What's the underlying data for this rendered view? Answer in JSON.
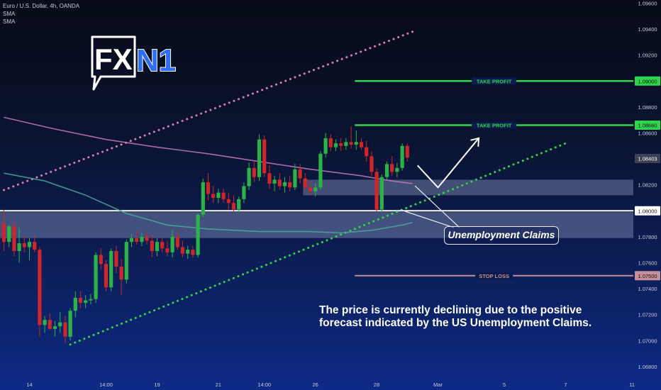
{
  "header": {
    "symbol_line": "Euro / U.S. Dollar, 4h, OANDA",
    "indicators": [
      "SMA",
      "SMA"
    ]
  },
  "logo": {
    "text": "FXN1"
  },
  "annotations": {
    "callout": "Unemployment Claims",
    "note": "The price is currently declining due to the positive forecast indicated by the US Unemployment Claims."
  },
  "colors": {
    "up": "#26a69a",
    "up_candle": "#2bb34a",
    "down": "#d0252b",
    "take_profit": "#2ed64b",
    "stop_loss": "#c78f96",
    "trend_upper": "#d77fb3",
    "trend_lower": "#2ed64b",
    "sma_fast": "#c57bbd",
    "sma_slow": "#4aa89c",
    "zone": "#b7c3ea"
  },
  "chart_data": {
    "type": "candlestick",
    "instrument": "Euro / U.S. Dollar",
    "timeframe": "4h",
    "source": "OANDA",
    "y_axis": {
      "ticks": [
        "1.09600",
        "1.09400",
        "1.09200",
        "1.09000",
        "1.08800",
        "1.08600",
        "1.08400",
        "1.08200",
        "1.08000",
        "1.07800",
        "1.07600",
        "1.07400",
        "1.07200",
        "1.07000",
        "1.06800"
      ],
      "range": [
        1.0676,
        1.0962
      ]
    },
    "x_axis": {
      "ticks": [
        {
          "label": "14",
          "bar": 5
        },
        {
          "label": "14:00",
          "bar": 20
        },
        {
          "label": "19",
          "bar": 30
        },
        {
          "label": "21",
          "bar": 42
        },
        {
          "label": "14:00",
          "bar": 51
        },
        {
          "label": "26",
          "bar": 61
        },
        {
          "label": "28",
          "bar": 73
        },
        {
          "label": "Mar",
          "bar": 85
        },
        {
          "label": "5",
          "bar": 98
        },
        {
          "label": "7",
          "bar": 110
        },
        {
          "label": "11",
          "bar": 123
        }
      ]
    },
    "price_labels": [
      {
        "text": "1.09000",
        "value": 1.09,
        "kind": "take_profit"
      },
      {
        "text": "1.08660",
        "value": 1.0866,
        "kind": "take_profit"
      },
      {
        "text": "1.08403",
        "value": 1.08403,
        "kind": "current"
      },
      {
        "text": "1.08000",
        "value": 1.08,
        "kind": "level"
      },
      {
        "text": "1.07500",
        "value": 1.075,
        "kind": "stop_loss"
      }
    ],
    "levels": [
      {
        "label": "TAKE PROFIT",
        "value": 1.09,
        "type": "take_profit",
        "from_bar": 69
      },
      {
        "label": "TAKE PROFIT",
        "value": 1.0866,
        "type": "take_profit",
        "from_bar": 69
      },
      {
        "label": "STOP LOSS",
        "value": 1.075,
        "type": "stop_loss",
        "from_bar": 69
      },
      {
        "label": "",
        "value": 1.08,
        "type": "horizontal"
      }
    ],
    "zones": [
      {
        "from": 1.0779,
        "to": 1.0799,
        "from_bar": 0,
        "to_bar": null
      },
      {
        "from": 1.0812,
        "to": 1.0824,
        "from_bar": 59,
        "to_bar": null
      }
    ],
    "candles": [
      {
        "o": 1.079,
        "h": 1.0801,
        "l": 1.0769,
        "c": 1.0776
      },
      {
        "o": 1.0776,
        "h": 1.0789,
        "l": 1.0772,
        "c": 1.0788
      },
      {
        "o": 1.0788,
        "h": 1.0792,
        "l": 1.0765,
        "c": 1.0769
      },
      {
        "o": 1.0769,
        "h": 1.0787,
        "l": 1.076,
        "c": 1.0775
      },
      {
        "o": 1.0775,
        "h": 1.0781,
        "l": 1.0768,
        "c": 1.0772
      },
      {
        "o": 1.0772,
        "h": 1.0779,
        "l": 1.0762,
        "c": 1.0776
      },
      {
        "o": 1.0776,
        "h": 1.0781,
        "l": 1.0768,
        "c": 1.077
      },
      {
        "o": 1.077,
        "h": 1.0772,
        "l": 1.0703,
        "c": 1.0712
      },
      {
        "o": 1.0712,
        "h": 1.0719,
        "l": 1.0706,
        "c": 1.0716
      },
      {
        "o": 1.0716,
        "h": 1.0721,
        "l": 1.0708,
        "c": 1.0709
      },
      {
        "o": 1.0709,
        "h": 1.0715,
        "l": 1.0703,
        "c": 1.0711
      },
      {
        "o": 1.0711,
        "h": 1.0722,
        "l": 1.0706,
        "c": 1.0714
      },
      {
        "o": 1.0714,
        "h": 1.0719,
        "l": 1.0698,
        "c": 1.0703
      },
      {
        "o": 1.0703,
        "h": 1.0725,
        "l": 1.07,
        "c": 1.0723
      },
      {
        "o": 1.0723,
        "h": 1.0738,
        "l": 1.0718,
        "c": 1.0733
      },
      {
        "o": 1.0733,
        "h": 1.0738,
        "l": 1.0725,
        "c": 1.0729
      },
      {
        "o": 1.0729,
        "h": 1.0735,
        "l": 1.0725,
        "c": 1.0731
      },
      {
        "o": 1.0731,
        "h": 1.0736,
        "l": 1.0728,
        "c": 1.0732
      },
      {
        "o": 1.0732,
        "h": 1.0768,
        "l": 1.0729,
        "c": 1.0766
      },
      {
        "o": 1.0766,
        "h": 1.0771,
        "l": 1.0755,
        "c": 1.0759
      },
      {
        "o": 1.0759,
        "h": 1.0762,
        "l": 1.0738,
        "c": 1.0741
      },
      {
        "o": 1.0741,
        "h": 1.0771,
        "l": 1.0738,
        "c": 1.0769
      },
      {
        "o": 1.0769,
        "h": 1.0773,
        "l": 1.0752,
        "c": 1.0757
      },
      {
        "o": 1.0757,
        "h": 1.0763,
        "l": 1.0735,
        "c": 1.0747
      },
      {
        "o": 1.0747,
        "h": 1.0778,
        "l": 1.0744,
        "c": 1.0776
      },
      {
        "o": 1.0776,
        "h": 1.0782,
        "l": 1.0772,
        "c": 1.0779
      },
      {
        "o": 1.0779,
        "h": 1.0785,
        "l": 1.0774,
        "c": 1.0776
      },
      {
        "o": 1.0776,
        "h": 1.0783,
        "l": 1.0773,
        "c": 1.078
      },
      {
        "o": 1.078,
        "h": 1.0784,
        "l": 1.0774,
        "c": 1.0777
      },
      {
        "o": 1.0777,
        "h": 1.0782,
        "l": 1.0764,
        "c": 1.0769
      },
      {
        "o": 1.0769,
        "h": 1.0779,
        "l": 1.0765,
        "c": 1.0776
      },
      {
        "o": 1.0776,
        "h": 1.0779,
        "l": 1.0768,
        "c": 1.0771
      },
      {
        "o": 1.0771,
        "h": 1.0777,
        "l": 1.0765,
        "c": 1.0768
      },
      {
        "o": 1.0768,
        "h": 1.0785,
        "l": 1.0764,
        "c": 1.078
      },
      {
        "o": 1.078,
        "h": 1.0784,
        "l": 1.077,
        "c": 1.0772
      },
      {
        "o": 1.0772,
        "h": 1.0777,
        "l": 1.0764,
        "c": 1.0767
      },
      {
        "o": 1.0767,
        "h": 1.0773,
        "l": 1.0763,
        "c": 1.077
      },
      {
        "o": 1.077,
        "h": 1.0773,
        "l": 1.0764,
        "c": 1.0766
      },
      {
        "o": 1.0766,
        "h": 1.0798,
        "l": 1.0764,
        "c": 1.0797
      },
      {
        "o": 1.0797,
        "h": 1.0825,
        "l": 1.0795,
        "c": 1.0822
      },
      {
        "o": 1.0822,
        "h": 1.0829,
        "l": 1.0808,
        "c": 1.0813
      },
      {
        "o": 1.0813,
        "h": 1.0819,
        "l": 1.0806,
        "c": 1.081
      },
      {
        "o": 1.081,
        "h": 1.0817,
        "l": 1.0806,
        "c": 1.0814
      },
      {
        "o": 1.0814,
        "h": 1.0817,
        "l": 1.0806,
        "c": 1.0809
      },
      {
        "o": 1.0809,
        "h": 1.0814,
        "l": 1.0801,
        "c": 1.0806
      },
      {
        "o": 1.0806,
        "h": 1.0812,
        "l": 1.0799,
        "c": 1.0801
      },
      {
        "o": 1.0801,
        "h": 1.0811,
        "l": 1.0799,
        "c": 1.0809
      },
      {
        "o": 1.0809,
        "h": 1.0822,
        "l": 1.0806,
        "c": 1.0819
      },
      {
        "o": 1.0819,
        "h": 1.0837,
        "l": 1.0816,
        "c": 1.0833
      },
      {
        "o": 1.0833,
        "h": 1.0838,
        "l": 1.0822,
        "c": 1.0826
      },
      {
        "o": 1.0826,
        "h": 1.0859,
        "l": 1.0823,
        "c": 1.0855
      },
      {
        "o": 1.0855,
        "h": 1.0858,
        "l": 1.0826,
        "c": 1.0829
      },
      {
        "o": 1.0829,
        "h": 1.0835,
        "l": 1.0817,
        "c": 1.0821
      },
      {
        "o": 1.0821,
        "h": 1.0827,
        "l": 1.0815,
        "c": 1.0824
      },
      {
        "o": 1.0824,
        "h": 1.0829,
        "l": 1.0816,
        "c": 1.0819
      },
      {
        "o": 1.0819,
        "h": 1.0826,
        "l": 1.0814,
        "c": 1.0822
      },
      {
        "o": 1.0822,
        "h": 1.0827,
        "l": 1.0815,
        "c": 1.0818
      },
      {
        "o": 1.0818,
        "h": 1.0836,
        "l": 1.0816,
        "c": 1.0832
      },
      {
        "o": 1.0832,
        "h": 1.0836,
        "l": 1.0821,
        "c": 1.0825
      },
      {
        "o": 1.0825,
        "h": 1.0829,
        "l": 1.0815,
        "c": 1.0818
      },
      {
        "o": 1.0818,
        "h": 1.0822,
        "l": 1.0812,
        "c": 1.0815
      },
      {
        "o": 1.0815,
        "h": 1.0821,
        "l": 1.0811,
        "c": 1.0818
      },
      {
        "o": 1.0818,
        "h": 1.0846,
        "l": 1.0816,
        "c": 1.0844
      },
      {
        "o": 1.0844,
        "h": 1.086,
        "l": 1.0841,
        "c": 1.0856
      },
      {
        "o": 1.0856,
        "h": 1.0859,
        "l": 1.0846,
        "c": 1.0849
      },
      {
        "o": 1.0849,
        "h": 1.0855,
        "l": 1.0846,
        "c": 1.0852
      },
      {
        "o": 1.0852,
        "h": 1.0856,
        "l": 1.0846,
        "c": 1.085
      },
      {
        "o": 1.085,
        "h": 1.0856,
        "l": 1.0847,
        "c": 1.0853
      },
      {
        "o": 1.0853,
        "h": 1.0865,
        "l": 1.0848,
        "c": 1.0851
      },
      {
        "o": 1.0851,
        "h": 1.0862,
        "l": 1.0847,
        "c": 1.0853
      },
      {
        "o": 1.0853,
        "h": 1.0856,
        "l": 1.0847,
        "c": 1.0849
      },
      {
        "o": 1.0849,
        "h": 1.0854,
        "l": 1.0838,
        "c": 1.0842
      },
      {
        "o": 1.0842,
        "h": 1.0846,
        "l": 1.0827,
        "c": 1.083
      },
      {
        "o": 1.083,
        "h": 1.0833,
        "l": 1.0799,
        "c": 1.0801
      },
      {
        "o": 1.0801,
        "h": 1.0828,
        "l": 1.0799,
        "c": 1.0826
      },
      {
        "o": 1.0826,
        "h": 1.0838,
        "l": 1.0824,
        "c": 1.0836
      },
      {
        "o": 1.0836,
        "h": 1.0842,
        "l": 1.0827,
        "c": 1.083
      },
      {
        "o": 1.083,
        "h": 1.0837,
        "l": 1.0826,
        "c": 1.0833
      },
      {
        "o": 1.0833,
        "h": 1.0852,
        "l": 1.0831,
        "c": 1.085
      },
      {
        "o": 1.085,
        "h": 1.0852,
        "l": 1.0838,
        "c": 1.0841
      }
    ],
    "sma_fast": [
      [
        0,
        1.0872
      ],
      [
        10,
        1.0863
      ],
      [
        20,
        1.0855
      ],
      [
        30,
        1.0849
      ],
      [
        40,
        1.0844
      ],
      [
        50,
        1.0838
      ],
      [
        60,
        1.0832
      ],
      [
        70,
        1.0827
      ],
      [
        76,
        1.0823
      ],
      [
        80,
        1.0821
      ]
    ],
    "sma_slow": [
      [
        0,
        1.0829
      ],
      [
        8,
        1.0823
      ],
      [
        16,
        1.0812
      ],
      [
        24,
        1.0798
      ],
      [
        32,
        1.0789
      ],
      [
        40,
        1.0786
      ],
      [
        50,
        1.0784
      ],
      [
        60,
        1.0784
      ],
      [
        66,
        1.0783
      ],
      [
        72,
        1.0785
      ],
      [
        78,
        1.0789
      ],
      [
        80,
        1.0791
      ]
    ],
    "trendlines": [
      {
        "style": "dotted",
        "color_key": "trend_upper",
        "from": [
          0,
          1.0816
        ],
        "to": [
          80,
          1.0938
        ]
      },
      {
        "style": "dotted",
        "color_key": "trend_lower",
        "from": [
          13,
          1.0697
        ],
        "to": [
          110,
          1.0852
        ]
      }
    ],
    "projection": [
      [
        81,
        1.0835
      ],
      [
        85,
        1.0818
      ],
      [
        93,
        1.0856
      ]
    ]
  }
}
